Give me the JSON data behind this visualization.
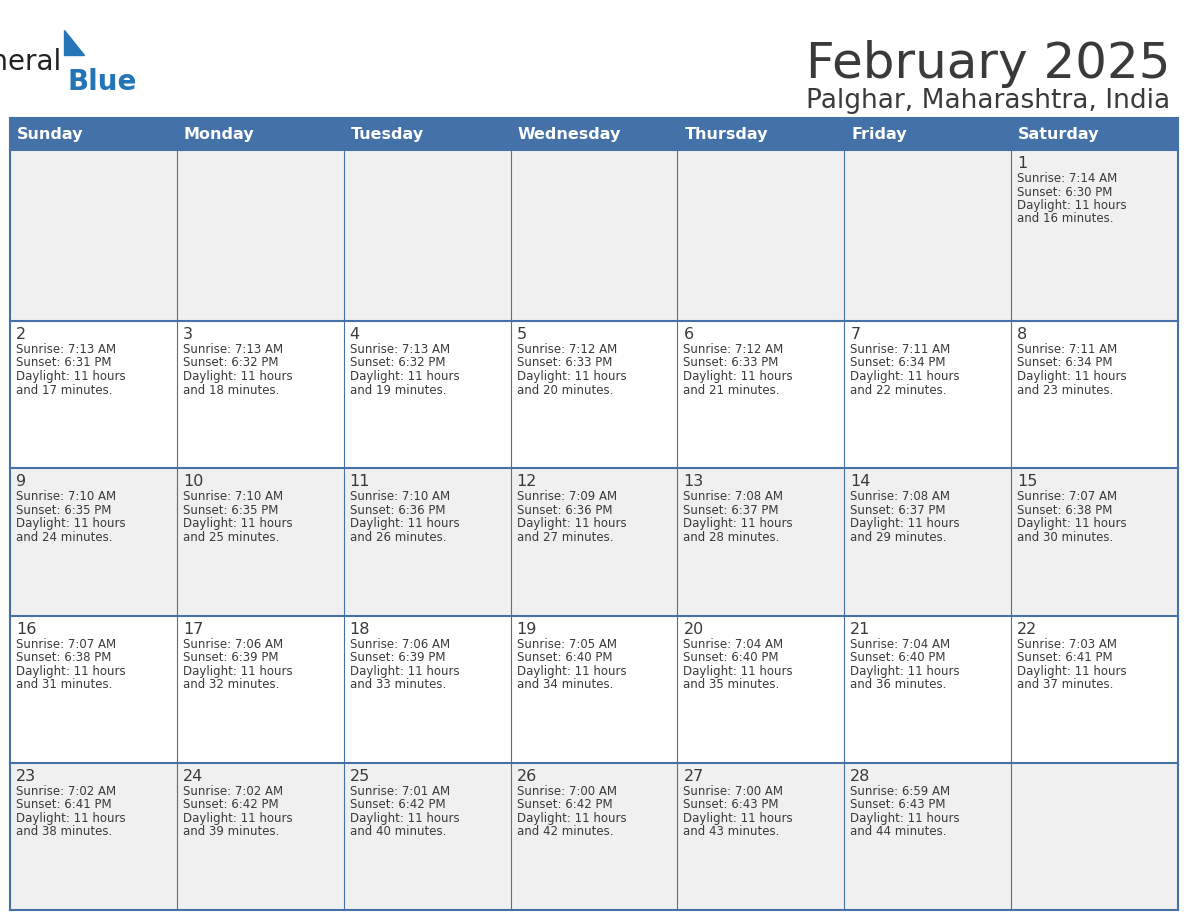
{
  "title": "February 2025",
  "subtitle": "Palghar, Maharashtra, India",
  "header_bg": "#4472a8",
  "header_text_color": "#ffffff",
  "cell_bg_odd": "#f0f0f0",
  "cell_bg_even": "#ffffff",
  "border_color": "#4472a8",
  "text_color": "#3a3a3a",
  "days_of_week": [
    "Sunday",
    "Monday",
    "Tuesday",
    "Wednesday",
    "Thursday",
    "Friday",
    "Saturday"
  ],
  "calendar_data": [
    [
      null,
      null,
      null,
      null,
      null,
      null,
      {
        "day": "1",
        "sunrise": "7:14 AM",
        "sunset": "6:30 PM",
        "daylight": "11 hours",
        "daylight2": "and 16 minutes."
      }
    ],
    [
      {
        "day": "2",
        "sunrise": "7:13 AM",
        "sunset": "6:31 PM",
        "daylight": "11 hours",
        "daylight2": "and 17 minutes."
      },
      {
        "day": "3",
        "sunrise": "7:13 AM",
        "sunset": "6:32 PM",
        "daylight": "11 hours",
        "daylight2": "and 18 minutes."
      },
      {
        "day": "4",
        "sunrise": "7:13 AM",
        "sunset": "6:32 PM",
        "daylight": "11 hours",
        "daylight2": "and 19 minutes."
      },
      {
        "day": "5",
        "sunrise": "7:12 AM",
        "sunset": "6:33 PM",
        "daylight": "11 hours",
        "daylight2": "and 20 minutes."
      },
      {
        "day": "6",
        "sunrise": "7:12 AM",
        "sunset": "6:33 PM",
        "daylight": "11 hours",
        "daylight2": "and 21 minutes."
      },
      {
        "day": "7",
        "sunrise": "7:11 AM",
        "sunset": "6:34 PM",
        "daylight": "11 hours",
        "daylight2": "and 22 minutes."
      },
      {
        "day": "8",
        "sunrise": "7:11 AM",
        "sunset": "6:34 PM",
        "daylight": "11 hours",
        "daylight2": "and 23 minutes."
      }
    ],
    [
      {
        "day": "9",
        "sunrise": "7:10 AM",
        "sunset": "6:35 PM",
        "daylight": "11 hours",
        "daylight2": "and 24 minutes."
      },
      {
        "day": "10",
        "sunrise": "7:10 AM",
        "sunset": "6:35 PM",
        "daylight": "11 hours",
        "daylight2": "and 25 minutes."
      },
      {
        "day": "11",
        "sunrise": "7:10 AM",
        "sunset": "6:36 PM",
        "daylight": "11 hours",
        "daylight2": "and 26 minutes."
      },
      {
        "day": "12",
        "sunrise": "7:09 AM",
        "sunset": "6:36 PM",
        "daylight": "11 hours",
        "daylight2": "and 27 minutes."
      },
      {
        "day": "13",
        "sunrise": "7:08 AM",
        "sunset": "6:37 PM",
        "daylight": "11 hours",
        "daylight2": "and 28 minutes."
      },
      {
        "day": "14",
        "sunrise": "7:08 AM",
        "sunset": "6:37 PM",
        "daylight": "11 hours",
        "daylight2": "and 29 minutes."
      },
      {
        "day": "15",
        "sunrise": "7:07 AM",
        "sunset": "6:38 PM",
        "daylight": "11 hours",
        "daylight2": "and 30 minutes."
      }
    ],
    [
      {
        "day": "16",
        "sunrise": "7:07 AM",
        "sunset": "6:38 PM",
        "daylight": "11 hours",
        "daylight2": "and 31 minutes."
      },
      {
        "day": "17",
        "sunrise": "7:06 AM",
        "sunset": "6:39 PM",
        "daylight": "11 hours",
        "daylight2": "and 32 minutes."
      },
      {
        "day": "18",
        "sunrise": "7:06 AM",
        "sunset": "6:39 PM",
        "daylight": "11 hours",
        "daylight2": "and 33 minutes."
      },
      {
        "day": "19",
        "sunrise": "7:05 AM",
        "sunset": "6:40 PM",
        "daylight": "11 hours",
        "daylight2": "and 34 minutes."
      },
      {
        "day": "20",
        "sunrise": "7:04 AM",
        "sunset": "6:40 PM",
        "daylight": "11 hours",
        "daylight2": "and 35 minutes."
      },
      {
        "day": "21",
        "sunrise": "7:04 AM",
        "sunset": "6:40 PM",
        "daylight": "11 hours",
        "daylight2": "and 36 minutes."
      },
      {
        "day": "22",
        "sunrise": "7:03 AM",
        "sunset": "6:41 PM",
        "daylight": "11 hours",
        "daylight2": "and 37 minutes."
      }
    ],
    [
      {
        "day": "23",
        "sunrise": "7:02 AM",
        "sunset": "6:41 PM",
        "daylight": "11 hours",
        "daylight2": "and 38 minutes."
      },
      {
        "day": "24",
        "sunrise": "7:02 AM",
        "sunset": "6:42 PM",
        "daylight": "11 hours",
        "daylight2": "and 39 minutes."
      },
      {
        "day": "25",
        "sunrise": "7:01 AM",
        "sunset": "6:42 PM",
        "daylight": "11 hours",
        "daylight2": "and 40 minutes."
      },
      {
        "day": "26",
        "sunrise": "7:00 AM",
        "sunset": "6:42 PM",
        "daylight": "11 hours",
        "daylight2": "and 42 minutes."
      },
      {
        "day": "27",
        "sunrise": "7:00 AM",
        "sunset": "6:43 PM",
        "daylight": "11 hours",
        "daylight2": "and 43 minutes."
      },
      {
        "day": "28",
        "sunrise": "6:59 AM",
        "sunset": "6:43 PM",
        "daylight": "11 hours",
        "daylight2": "and 44 minutes."
      },
      null
    ]
  ],
  "logo_general_color": "#222222",
  "logo_blue_color": "#2475b8",
  "logo_triangle_color": "#2475b8"
}
